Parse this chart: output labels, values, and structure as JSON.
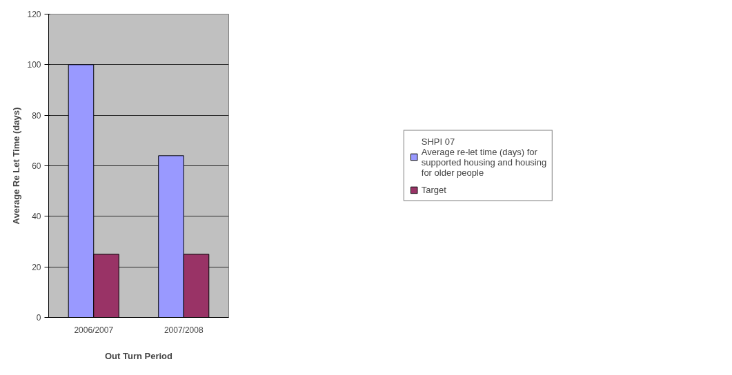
{
  "chart_data": {
    "type": "bar",
    "xlabel": "Out Turn Period",
    "ylabel": "Average Re Let Time (days)",
    "categories": [
      "2006/2007",
      "2007/2008"
    ],
    "series": [
      {
        "name": "SHPI 07\nAverage re-let time (days) for\nsupported housing and housing\nfor older people",
        "color": "#9999ff",
        "values": [
          100,
          64
        ]
      },
      {
        "name": "Target",
        "color": "#993366",
        "values": [
          25,
          25
        ]
      }
    ],
    "ylim": [
      0,
      120
    ],
    "yticks": [
      0,
      20,
      40,
      60,
      80,
      100,
      120
    ],
    "grid": "y",
    "legend": "right"
  }
}
